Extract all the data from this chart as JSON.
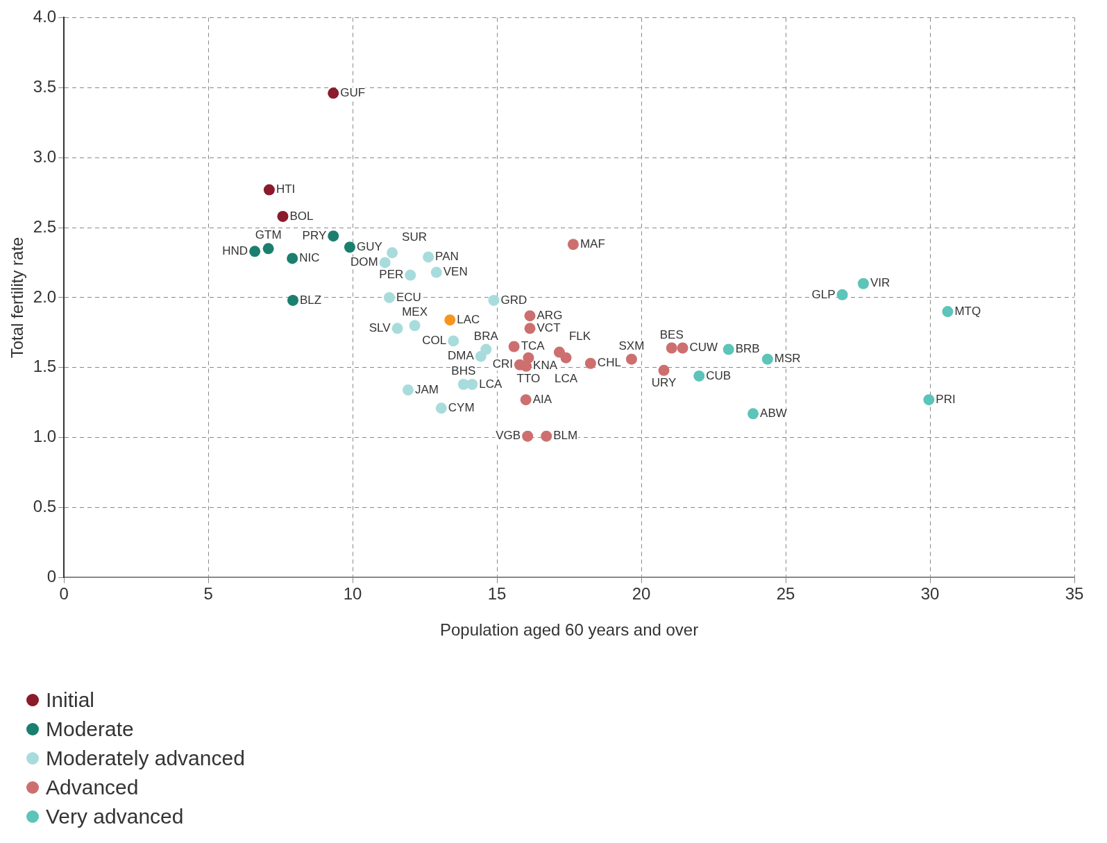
{
  "chart_data": {
    "type": "scatter",
    "xlabel": "Population aged 60 years and over",
    "ylabel": "Total fertility rate",
    "xlim": [
      0,
      35
    ],
    "xticks": [
      0,
      5,
      10,
      15,
      20,
      25,
      30,
      35
    ],
    "ylim": [
      0,
      4
    ],
    "yticks": [
      0,
      {
        "value": 0.5,
        "label": "0.5"
      },
      {
        "value": 1,
        "label": "1.0"
      },
      {
        "value": 1.5,
        "label": "1.5"
      },
      {
        "value": 2,
        "label": "2.0"
      },
      {
        "value": 2.5,
        "label": "2.5"
      },
      {
        "value": 3,
        "label": "3.0"
      },
      {
        "value": 3.5,
        "label": "3.5"
      },
      {
        "value": 4,
        "label": "4.0"
      }
    ],
    "grid": true,
    "legend": "bottom left",
    "marker": "circle",
    "series": [
      {
        "name": "Initial",
        "color": "#8b1a2b",
        "x": [
          9.33,
          7.11,
          7.58
        ],
        "values": [
          3.46,
          2.77,
          2.58
        ]
      },
      {
        "name": "Moderate",
        "color": "#1a7f6e",
        "x": [
          6.61,
          7.08,
          7.91,
          7.93,
          9.33,
          9.9
        ],
        "values": [
          2.33,
          2.35,
          2.28,
          1.98,
          2.44,
          2.36
        ]
      },
      {
        "name": "Moderately advanced",
        "color": "#a8dcdc",
        "x": [
          11.37,
          11.12,
          12.0,
          12.62,
          12.9,
          11.27,
          14.89,
          11.55,
          12.15,
          13.49,
          14.62,
          14.44,
          11.92,
          13.84,
          14.14,
          13.07
        ],
        "values": [
          2.32,
          2.25,
          2.16,
          2.29,
          2.18,
          2.0,
          1.98,
          1.78,
          1.8,
          1.69,
          1.63,
          1.58,
          1.34,
          1.38,
          1.38,
          1.21
        ]
      },
      {
        "name": "Advanced",
        "color": "#cd6f6f",
        "x": [
          17.64,
          16.14,
          16.14,
          15.59,
          16.09,
          15.79,
          16.01,
          17.16,
          17.39,
          16.0,
          16.06,
          16.71,
          18.24,
          19.66,
          21.05,
          21.43,
          20.78
        ],
        "values": [
          2.38,
          1.87,
          1.78,
          1.65,
          1.57,
          1.52,
          1.51,
          1.61,
          1.57,
          1.27,
          1.01,
          1.01,
          1.53,
          1.56,
          1.64,
          1.64,
          1.48
        ]
      },
      {
        "name": "Very advanced",
        "color": "#5cc4b8",
        "x": [
          23.02,
          24.37,
          22.0,
          23.87,
          26.96,
          27.69,
          30.61,
          29.96
        ],
        "values": [
          1.63,
          1.56,
          1.44,
          1.17,
          2.02,
          2.1,
          1.9,
          1.27
        ]
      },
      {
        "color": "#f7941d",
        "x": [
          13.37
        ],
        "values": [
          1.84
        ]
      }
    ],
    "annotations": [
      {
        "text": "GUF",
        "x": 9.33,
        "y": 3.46
      },
      {
        "text": "HTI",
        "x": 7.11,
        "y": 2.77
      },
      {
        "text": "BOL",
        "x": 7.58,
        "y": 2.58
      },
      {
        "text": "HND",
        "x": 6.61,
        "y": 2.33
      },
      {
        "text": "GTM",
        "x": 7.08,
        "y": 2.35
      },
      {
        "text": "NIC",
        "x": 7.91,
        "y": 2.28
      },
      {
        "text": "BLZ",
        "x": 7.93,
        "y": 1.98
      },
      {
        "text": "PRY",
        "x": 9.33,
        "y": 2.44
      },
      {
        "text": "GUY",
        "x": 9.9,
        "y": 2.36
      },
      {
        "text": "SUR",
        "x": 11.37,
        "y": 2.32
      },
      {
        "text": "DOM",
        "x": 11.12,
        "y": 2.25
      },
      {
        "text": "PER",
        "x": 12.0,
        "y": 2.16
      },
      {
        "text": "PAN",
        "x": 12.62,
        "y": 2.29
      },
      {
        "text": "VEN",
        "x": 12.9,
        "y": 2.18
      },
      {
        "text": "ECU",
        "x": 11.27,
        "y": 2.0
      },
      {
        "text": "GRD",
        "x": 14.89,
        "y": 1.98
      },
      {
        "text": "SLV",
        "x": 11.55,
        "y": 1.78
      },
      {
        "text": "MEX",
        "x": 12.15,
        "y": 1.8
      },
      {
        "text": "COL",
        "x": 13.49,
        "y": 1.69
      },
      {
        "text": "BRA",
        "x": 14.62,
        "y": 1.63
      },
      {
        "text": "DMA",
        "x": 14.44,
        "y": 1.58
      },
      {
        "text": "JAM",
        "x": 11.92,
        "y": 1.34
      },
      {
        "text": "BHS",
        "x": 13.84,
        "y": 1.38
      },
      {
        "text": "LCA",
        "x": 14.14,
        "y": 1.38
      },
      {
        "text": "CYM",
        "x": 13.07,
        "y": 1.21
      },
      {
        "text": "MAF",
        "x": 17.64,
        "y": 2.38
      },
      {
        "text": "ARG",
        "x": 16.14,
        "y": 1.87
      },
      {
        "text": "VCT",
        "x": 16.14,
        "y": 1.78
      },
      {
        "text": "TCA",
        "x": 15.59,
        "y": 1.65
      },
      {
        "text": "TTO",
        "x": 16.09,
        "y": 1.57
      },
      {
        "text": "CRI",
        "x": 15.79,
        "y": 1.52
      },
      {
        "text": "KNA",
        "x": 16.01,
        "y": 1.51
      },
      {
        "text": "FLK",
        "x": 17.16,
        "y": 1.61
      },
      {
        "text": "LCA",
        "x": 17.39,
        "y": 1.57
      },
      {
        "text": "AIA",
        "x": 16.0,
        "y": 1.27
      },
      {
        "text": "VGB",
        "x": 16.06,
        "y": 1.01
      },
      {
        "text": "BLM",
        "x": 16.71,
        "y": 1.01
      },
      {
        "text": "CHL",
        "x": 18.24,
        "y": 1.53
      },
      {
        "text": "SXM",
        "x": 19.66,
        "y": 1.56
      },
      {
        "text": "BES",
        "x": 21.05,
        "y": 1.64
      },
      {
        "text": "CUW",
        "x": 21.43,
        "y": 1.64
      },
      {
        "text": "URY",
        "x": 20.78,
        "y": 1.48
      },
      {
        "text": "BRB",
        "x": 23.02,
        "y": 1.63
      },
      {
        "text": "MSR",
        "x": 24.37,
        "y": 1.56
      },
      {
        "text": "CUB",
        "x": 22.0,
        "y": 1.44
      },
      {
        "text": "ABW",
        "x": 23.87,
        "y": 1.17
      },
      {
        "text": "GLP",
        "x": 26.96,
        "y": 2.02
      },
      {
        "text": "VIR",
        "x": 27.69,
        "y": 2.1
      },
      {
        "text": "MTQ",
        "x": 30.61,
        "y": 1.9
      },
      {
        "text": "PRI",
        "x": 29.96,
        "y": 1.27
      },
      {
        "text": "LAC",
        "x": 13.37,
        "y": 1.84
      }
    ]
  }
}
